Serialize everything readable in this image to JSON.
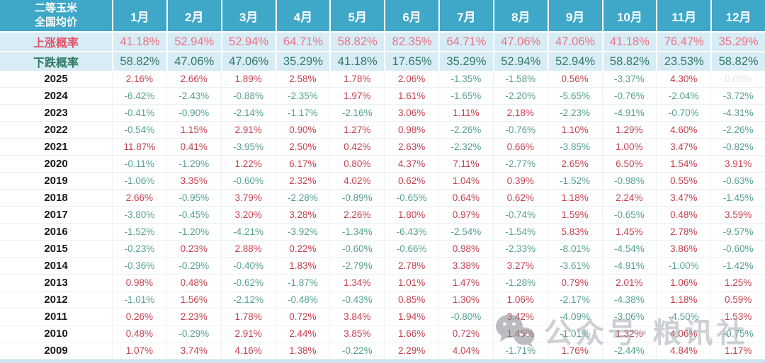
{
  "table": {
    "corner_line1": "二等玉米",
    "corner_line2": "全国均价",
    "months": [
      "1月",
      "2月",
      "3月",
      "4月",
      "5月",
      "6月",
      "7月",
      "8月",
      "9月",
      "10月",
      "11月",
      "12月"
    ],
    "rise_row": {
      "label": "上涨概率",
      "values": [
        "41.18%",
        "52.94%",
        "52.94%",
        "64.71%",
        "58.82%",
        "82.35%",
        "64.71%",
        "47.06%",
        "47.06%",
        "41.18%",
        "76.47%",
        "35.29%"
      ]
    },
    "fall_row": {
      "label": "下跌概率",
      "values": [
        "58.82%",
        "47.06%",
        "47.06%",
        "35.29%",
        "41.18%",
        "17.65%",
        "35.29%",
        "52.94%",
        "52.94%",
        "58.82%",
        "23.53%",
        "58.82%"
      ]
    },
    "years": [
      {
        "year": "2025",
        "values": [
          "2.16%",
          "2.66%",
          "1.89%",
          "2.58%",
          "1.78%",
          "2.06%",
          "-1.35%",
          "-1.58%",
          "0.56%",
          "-3.37%",
          "4.30%",
          "0.00%"
        ]
      },
      {
        "year": "2024",
        "values": [
          "-6.42%",
          "-2.43%",
          "-0.88%",
          "-2.35%",
          "1.97%",
          "1.61%",
          "-1.65%",
          "-2.20%",
          "-5.65%",
          "-0.76%",
          "-2.04%",
          "-3.72%"
        ]
      },
      {
        "year": "2023",
        "values": [
          "-0.41%",
          "-0.90%",
          "-2.14%",
          "-1.17%",
          "-2.16%",
          "3.06%",
          "1.11%",
          "2.18%",
          "-2.23%",
          "-4.91%",
          "-0.70%",
          "-4.31%"
        ]
      },
      {
        "year": "2022",
        "values": [
          "-0.54%",
          "1.15%",
          "2.91%",
          "0.90%",
          "1.27%",
          "0.98%",
          "-2.26%",
          "-0.76%",
          "1.10%",
          "1.29%",
          "4.60%",
          "-2.26%"
        ]
      },
      {
        "year": "2021",
        "values": [
          "11.87%",
          "0.41%",
          "-3.95%",
          "2.50%",
          "0.42%",
          "2.63%",
          "-2.32%",
          "0.66%",
          "-3.85%",
          "1.00%",
          "3.47%",
          "-0.82%"
        ]
      },
      {
        "year": "2020",
        "values": [
          "-0.11%",
          "-1.29%",
          "1.22%",
          "6.17%",
          "0.80%",
          "4.37%",
          "7.11%",
          "-2.77%",
          "2.65%",
          "6.50%",
          "1.54%",
          "3.91%"
        ]
      },
      {
        "year": "2019",
        "values": [
          "-1.06%",
          "3.35%",
          "-0.60%",
          "2.32%",
          "4.02%",
          "0.62%",
          "1.04%",
          "0.39%",
          "-1.52%",
          "-0.98%",
          "0.55%",
          "-0.63%"
        ]
      },
      {
        "year": "2018",
        "values": [
          "2.66%",
          "-0.95%",
          "3.79%",
          "-2.28%",
          "-0.89%",
          "-0.65%",
          "0.64%",
          "0.62%",
          "1.18%",
          "2.24%",
          "3.47%",
          "-1.45%"
        ]
      },
      {
        "year": "2017",
        "values": [
          "-3.80%",
          "-0.45%",
          "3.20%",
          "3.28%",
          "2.26%",
          "1.80%",
          "0.97%",
          "-0.74%",
          "1.59%",
          "-0.65%",
          "0.48%",
          "3.59%"
        ]
      },
      {
        "year": "2016",
        "values": [
          "-1.52%",
          "-1.20%",
          "-4.21%",
          "-3.92%",
          "-1.34%",
          "-6.43%",
          "-2.54%",
          "-1.54%",
          "5.83%",
          "1.45%",
          "2.78%",
          "-9.57%"
        ]
      },
      {
        "year": "2015",
        "values": [
          "-0.23%",
          "0.23%",
          "2.88%",
          "0.22%",
          "-0.60%",
          "-0.66%",
          "0.98%",
          "-2.33%",
          "-8.01%",
          "-4.54%",
          "3.86%",
          "-0.60%"
        ]
      },
      {
        "year": "2014",
        "values": [
          "-0.36%",
          "-0.29%",
          "-0.40%",
          "1.83%",
          "-2.79%",
          "2.78%",
          "3.38%",
          "3.27%",
          "-3.61%",
          "-4.91%",
          "-1.00%",
          "-1.42%"
        ]
      },
      {
        "year": "2013",
        "values": [
          "0.98%",
          "0.48%",
          "-0.62%",
          "-1.87%",
          "1.34%",
          "1.01%",
          "1.47%",
          "-1.28%",
          "0.79%",
          "2.01%",
          "1.06%",
          "1.25%"
        ]
      },
      {
        "year": "2012",
        "values": [
          "-1.01%",
          "1.56%",
          "-2.12%",
          "-0.48%",
          "-0.43%",
          "0.85%",
          "1.30%",
          "1.06%",
          "-2.17%",
          "-4.38%",
          "1.18%",
          "0.59%"
        ]
      },
      {
        "year": "2011",
        "values": [
          "0.26%",
          "2.23%",
          "1.78%",
          "0.72%",
          "3.84%",
          "1.94%",
          "-0.80%",
          "3.42%",
          "-4.09%",
          "-3.06%",
          "-4.50%",
          "1.53%"
        ]
      },
      {
        "year": "2010",
        "values": [
          "0.48%",
          "-0.29%",
          "2.91%",
          "2.44%",
          "3.85%",
          "1.66%",
          "0.72%",
          "1.45%",
          "-1.01%",
          "1.32%",
          "4.06%",
          "-0.75%"
        ]
      },
      {
        "year": "2009",
        "values": [
          "1.07%",
          "3.74%",
          "4.16%",
          "1.38%",
          "-0.22%",
          "2.29%",
          "4.04%",
          "-1.71%",
          "1.76%",
          "-2.44%",
          "4.84%",
          "1.17%"
        ]
      }
    ]
  },
  "watermark": {
    "icon": "wechat-icon",
    "text": "公众号·粮讯社"
  },
  "colors": {
    "header_bg": "#3FA7C8",
    "prob_row_bg": "#D7ECF5",
    "rise_label": "#E4516A",
    "rise_value": "#EC7387",
    "fall_label": "#2E7A66",
    "fall_value": "#33796B",
    "positive_value": "#C2414F",
    "negative_value": "#55A08D",
    "muted_value": "#DEE3EA"
  }
}
